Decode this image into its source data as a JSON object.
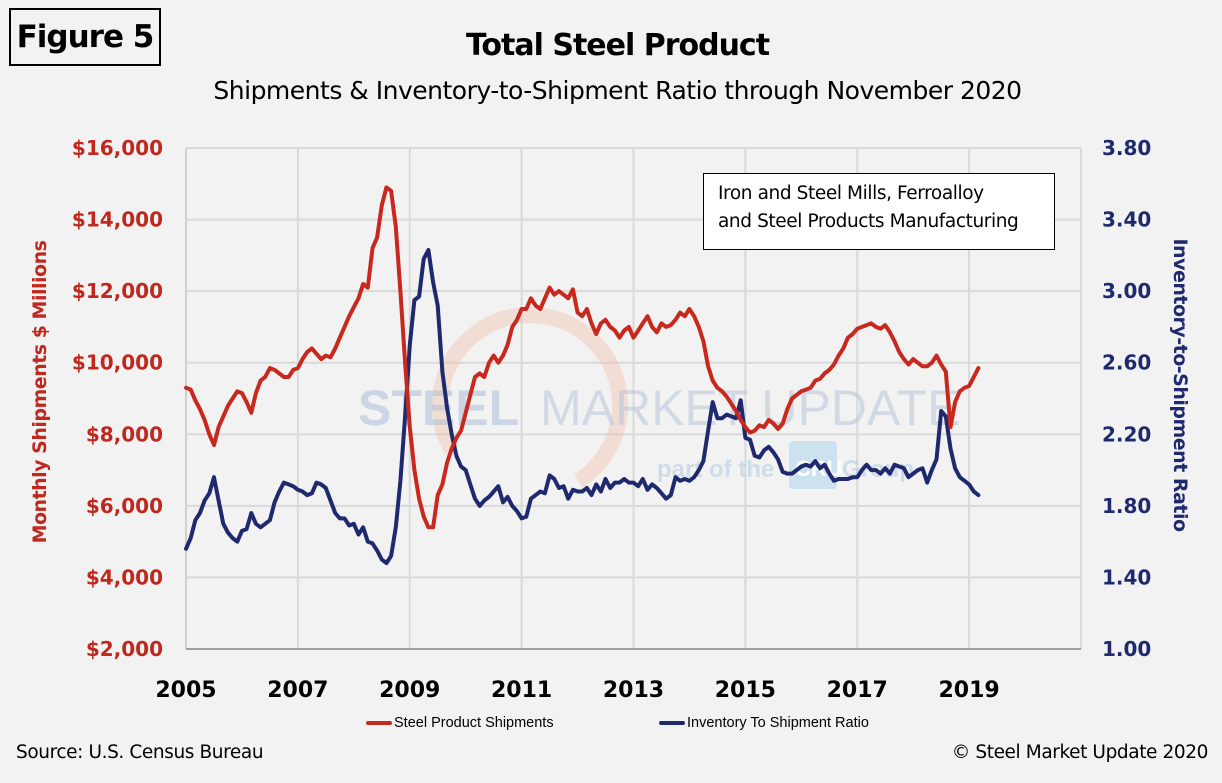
{
  "figure_label": "Figure 5",
  "note_box": {
    "line1": "Iron and Steel Mills, Ferroalloy",
    "line2": "and Steel Products Manufacturing"
  },
  "watermark": {
    "main_bold": "STEEL",
    "main_light": "MARKET UPDATE",
    "sub": "part of the",
    "badge": "CRU",
    "sub2": "Group"
  },
  "footer": {
    "source": "Source: U.S. Census Bureau",
    "copyright": "© Steel Market Update 2020"
  },
  "colors": {
    "shipments": "#c8281e",
    "ratio": "#1f2a6e",
    "grid": "#d9d9d9",
    "background": "#f2f2f2"
  },
  "chart_data": {
    "type": "line",
    "title": "Total Steel Product",
    "subtitle": "Shipments & Inventory-to-Shipment Ratio through November 2020",
    "xlabel": "",
    "ylabel": "Monthly Shipments $ Millions",
    "y2label": "Inventory-to-Shipment Ratio",
    "x_start": "2005-01",
    "x_end": "2020-11",
    "x_ticks": [
      "2005",
      "2007",
      "2009",
      "2011",
      "2013",
      "2015",
      "2017",
      "2019"
    ],
    "xlim": [
      2005,
      2021
    ],
    "ylim": [
      2000,
      16000
    ],
    "y_ticks": [
      "$2,000",
      "$4,000",
      "$6,000",
      "$8,000",
      "$10,000",
      "$12,000",
      "$14,000",
      "$16,000"
    ],
    "y2lim": [
      1.0,
      3.8
    ],
    "y2_ticks": [
      "1.00",
      "1.40",
      "1.80",
      "2.20",
      "2.60",
      "3.00",
      "3.40",
      "3.80"
    ],
    "grid": true,
    "legend_position": "bottom",
    "series": [
      {
        "name": "Steel Product Shipments",
        "axis": "left",
        "values": [
          9300,
          9250,
          8950,
          8700,
          8400,
          8000,
          7700,
          8200,
          8500,
          8800,
          9000,
          9200,
          9150,
          8900,
          8600,
          9150,
          9500,
          9600,
          9850,
          9800,
          9700,
          9600,
          9600,
          9800,
          9850,
          10100,
          10300,
          10400,
          10250,
          10100,
          10200,
          10150,
          10400,
          10700,
          11000,
          11300,
          11550,
          11800,
          12200,
          12100,
          13200,
          13500,
          14400,
          14900,
          14800,
          13800,
          12000,
          10000,
          8200,
          7000,
          6200,
          5700,
          5400,
          5400,
          6300,
          6600,
          7200,
          7600,
          7900,
          8100,
          8600,
          9100,
          9600,
          9700,
          9600,
          10000,
          10200,
          10000,
          10200,
          10500,
          11000,
          11200,
          11500,
          11500,
          11800,
          11600,
          11500,
          11800,
          12100,
          11900,
          12000,
          11900,
          11800,
          12050,
          11400,
          11300,
          11500,
          11100,
          10800,
          11100,
          11200,
          11000,
          10900,
          10700,
          10900,
          11000,
          10700,
          10900,
          11100,
          11300,
          11000,
          10850,
          11100,
          11000,
          11050,
          11200,
          11400,
          11300,
          11500,
          11300,
          11000,
          10600,
          9900,
          9500,
          9300,
          9200,
          9050,
          8850,
          8650,
          8400,
          8200,
          8050,
          8100,
          8250,
          8200,
          8400,
          8300,
          8150,
          8300,
          8700,
          9000,
          9100,
          9200,
          9250,
          9300,
          9500,
          9550,
          9700,
          9800,
          9950,
          10200,
          10400,
          10700,
          10800,
          10950,
          11000,
          11050,
          11100,
          11000,
          10950,
          11050,
          10850,
          10600,
          10300,
          10100,
          9950,
          10100,
          10000,
          9900,
          9900,
          10000,
          10200,
          9950,
          9750,
          8200,
          8900,
          9200,
          9300,
          9350,
          9600,
          9850
        ]
      },
      {
        "name": "Inventory To Shipment Ratio",
        "axis": "right",
        "values": [
          1.56,
          1.62,
          1.72,
          1.76,
          1.83,
          1.87,
          1.96,
          1.83,
          1.7,
          1.65,
          1.62,
          1.6,
          1.66,
          1.67,
          1.76,
          1.7,
          1.68,
          1.7,
          1.72,
          1.82,
          1.88,
          1.93,
          1.92,
          1.91,
          1.89,
          1.88,
          1.86,
          1.87,
          1.93,
          1.92,
          1.9,
          1.83,
          1.76,
          1.73,
          1.73,
          1.69,
          1.7,
          1.64,
          1.68,
          1.6,
          1.59,
          1.55,
          1.5,
          1.48,
          1.52,
          1.68,
          1.94,
          2.3,
          2.7,
          2.95,
          2.97,
          3.18,
          3.23,
          3.05,
          2.92,
          2.55,
          2.35,
          2.2,
          2.08,
          2.02,
          2.0,
          1.92,
          1.84,
          1.8,
          1.83,
          1.85,
          1.88,
          1.91,
          1.82,
          1.85,
          1.8,
          1.77,
          1.73,
          1.74,
          1.84,
          1.86,
          1.88,
          1.87,
          1.97,
          1.95,
          1.9,
          1.91,
          1.84,
          1.89,
          1.88,
          1.88,
          1.9,
          1.86,
          1.92,
          1.88,
          1.95,
          1.9,
          1.93,
          1.93,
          1.95,
          1.93,
          1.93,
          1.91,
          1.95,
          1.89,
          1.92,
          1.9,
          1.87,
          1.84,
          1.86,
          1.96,
          1.94,
          1.95,
          1.94,
          1.96,
          2.0,
          2.05,
          2.22,
          2.38,
          2.29,
          2.29,
          2.31,
          2.3,
          2.29,
          2.39,
          2.18,
          2.17,
          2.08,
          2.07,
          2.11,
          2.13,
          2.1,
          2.06,
          1.99,
          1.98,
          1.98,
          2.0,
          2.02,
          2.03,
          2.02,
          2.05,
          2.01,
          2.03,
          1.98,
          1.94,
          1.95,
          1.95,
          1.95,
          1.96,
          1.96,
          2.0,
          2.03,
          2.0,
          2.0,
          1.98,
          2.01,
          1.98,
          2.03,
          2.02,
          2.01,
          1.96,
          1.98,
          2.0,
          2.01,
          1.93,
          2.0,
          2.06,
          2.33,
          2.3,
          2.12,
          2.01,
          1.96,
          1.94,
          1.92,
          1.88,
          1.86
        ]
      }
    ]
  }
}
